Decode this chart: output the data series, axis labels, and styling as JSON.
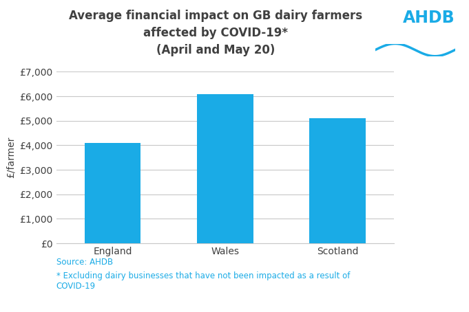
{
  "categories": [
    "England",
    "Wales",
    "Scotland"
  ],
  "values": [
    4100,
    6100,
    5100
  ],
  "bar_color": "#1aabe6",
  "title_line1": "Average financial impact on GB dairy farmers",
  "title_line2": "affected by COVID-19*",
  "title_line3": "(April and May 20)",
  "ylabel": "£/farmer",
  "ylim": [
    0,
    7000
  ],
  "yticks": [
    0,
    1000,
    2000,
    3000,
    4000,
    5000,
    6000,
    7000
  ],
  "ytick_labels": [
    "£0",
    "£1,000",
    "£2,000",
    "£3,000",
    "£4,000",
    "£5,000",
    "£6,000",
    "£7,000"
  ],
  "source_text": "Source: AHDB",
  "footnote_text": "* Excluding dairy businesses that have not been impacted as a result of\nCOVID-19",
  "background_color": "#ffffff",
  "grid_color": "#c8c8c8",
  "title_fontsize": 12,
  "tick_fontsize": 10,
  "bar_width": 0.5,
  "ahdb_text": "AHDB",
  "ahdb_color": "#1aabe6",
  "text_color": "#1aabe6",
  "title_color": "#404040"
}
